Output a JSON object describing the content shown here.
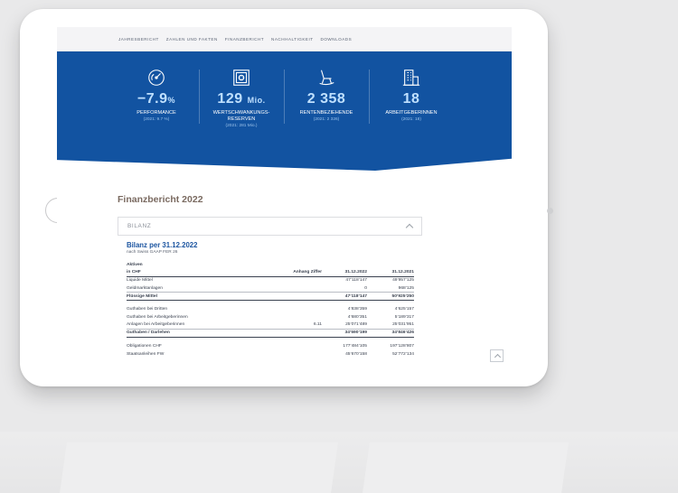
{
  "nav": [
    "JAHRESBERICHT",
    "ZAHLEN UND FAKTEN",
    "FINANZBERICHT",
    "NACHHALTIGKEIT",
    "DOWNLOADS"
  ],
  "stats": [
    {
      "icon": "gauge-icon",
      "value": "−7.9",
      "unit": "%",
      "label": "PERFORMANCE",
      "label2": "",
      "sub": "(2021: 9.7 %)"
    },
    {
      "icon": "safe-icon",
      "value": "129",
      "unit": "Mio.",
      "label": "WERTSCHWANKUNGS-",
      "label2": "RESERVEN",
      "sub": "(2021: 281 Mio.)"
    },
    {
      "icon": "rocking-chair-icon",
      "value": "2 358",
      "unit": "",
      "label": "RENTENBEZIEHENDE",
      "label2": "",
      "sub": "(2021: 2 326)"
    },
    {
      "icon": "building-icon",
      "value": "18",
      "unit": "",
      "label": "ARBEITGEBERINNEN",
      "label2": "",
      "sub": "(2021: 18)"
    }
  ],
  "section_title": "Finanzbericht 2022",
  "accordion_label": "BILANZ",
  "table": {
    "title": "Bilanz per 31.12.2022",
    "subtitle": "nach Swiss GAAP FER 26",
    "group": "Aktiven",
    "headers": [
      "in CHF",
      "Anhang Ziffer",
      "31.12.2022",
      "31.12.2021"
    ],
    "rows": [
      {
        "type": "row",
        "cells": [
          "Liquide Mittel",
          "",
          "47’118’147",
          "49’957’125"
        ]
      },
      {
        "type": "row",
        "cells": [
          "Geldmarktanlagen",
          "",
          "0",
          "968’125"
        ]
      },
      {
        "type": "total",
        "cells": [
          "Flüssige Mittel",
          "",
          "47’118’147",
          "50’925’250"
        ]
      },
      {
        "type": "gap",
        "cells": [
          "",
          "",
          "",
          ""
        ]
      },
      {
        "type": "row",
        "cells": [
          "Guthaben bei Dritten",
          "",
          "4’838’359",
          "4’625’157"
        ]
      },
      {
        "type": "row",
        "cells": [
          "Guthaben bei Arbeitgeberinnen",
          "",
          "4’680’351",
          "5’189’317"
        ]
      },
      {
        "type": "row",
        "cells": [
          "Anlagen bei Arbeitgeberinnen",
          "6.11",
          "25’071’489",
          "25’031’951"
        ]
      },
      {
        "type": "total",
        "cells": [
          "Guthaben / Darlehen",
          "",
          "34’590’199",
          "34’846’426"
        ]
      },
      {
        "type": "gap",
        "cells": [
          "",
          "",
          "",
          ""
        ]
      },
      {
        "type": "row",
        "cells": [
          "Obligationen CHF",
          "",
          "177’484’105",
          "197’128’807"
        ]
      },
      {
        "type": "row",
        "cells": [
          "Staatsanleihen FW",
          "",
          "45’670’158",
          "52’772’134"
        ]
      }
    ]
  },
  "colors": {
    "hero_blue": "#1253a1",
    "value_blue": "#bfe0ff",
    "title_brown": "#7a6a60",
    "link_blue": "#1c55a0"
  }
}
